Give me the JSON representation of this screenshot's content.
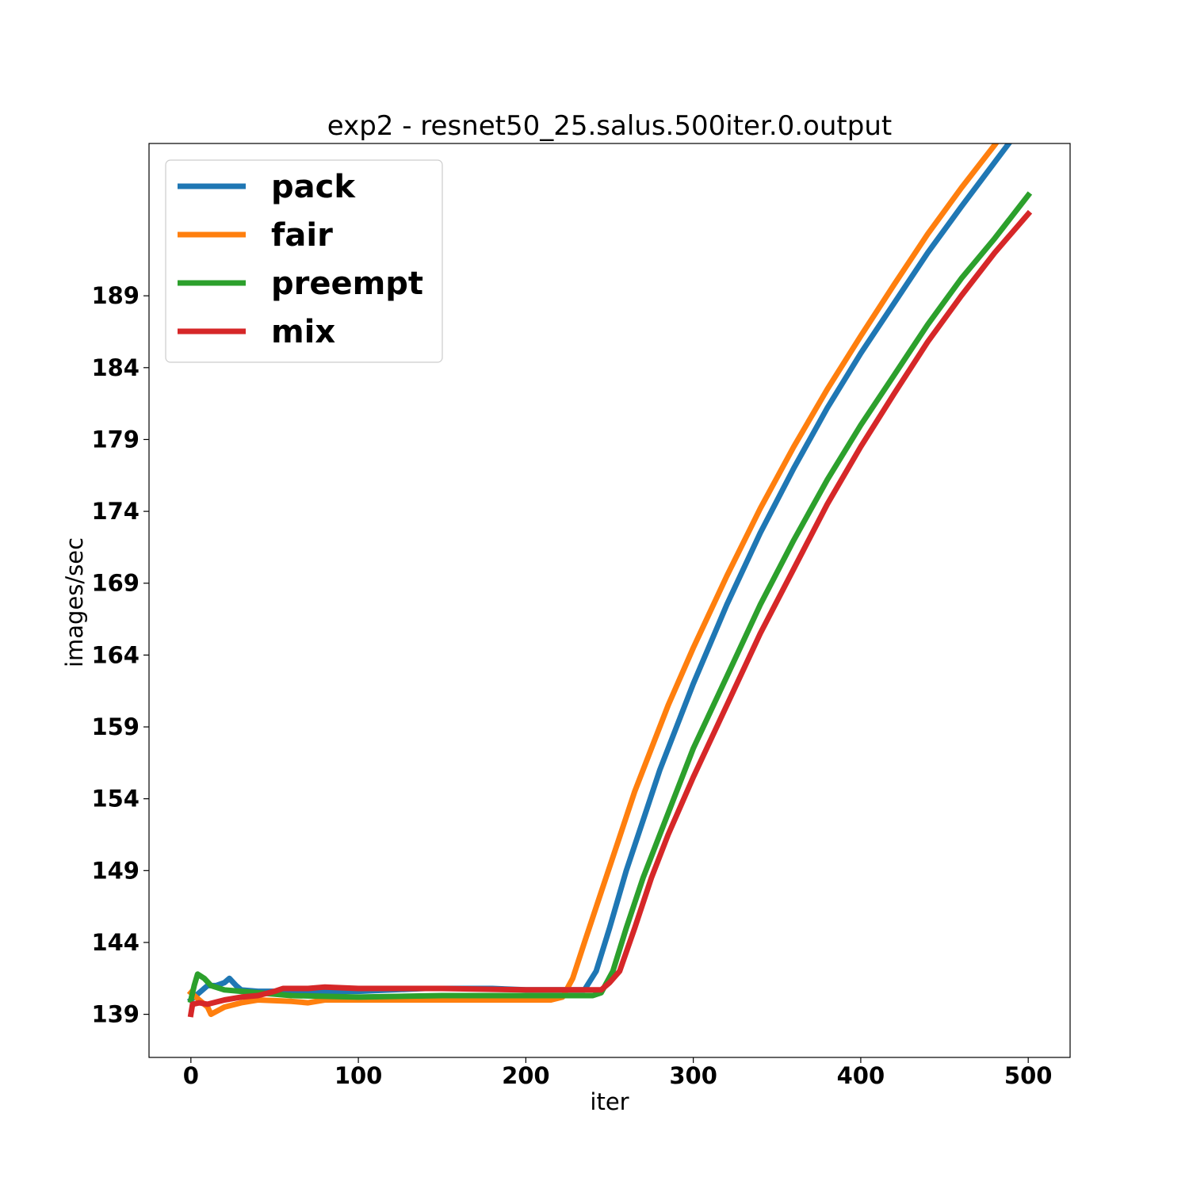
{
  "chart_data": {
    "type": "line",
    "title": "exp2 - resnet50_25.salus.500iter.0.output",
    "xlabel": "iter",
    "ylabel": "images/sec",
    "xlim": [
      -25,
      525
    ],
    "ylim": [
      136,
      199.6
    ],
    "x_ticks": [
      0,
      100,
      200,
      300,
      400,
      500
    ],
    "x_tick_labels": [
      "0",
      "100",
      "200",
      "300",
      "400",
      "500"
    ],
    "y_ticks": [
      139,
      144,
      149,
      154,
      159,
      164,
      169,
      174,
      179,
      184,
      189
    ],
    "y_tick_labels": [
      "139",
      "144",
      "149",
      "154",
      "159",
      "164",
      "169",
      "174",
      "179",
      "184",
      "189"
    ],
    "grid": false,
    "legend_position": "upper-left",
    "series": [
      {
        "name": "pack",
        "color": "#1f77b4",
        "points": [
          [
            0,
            140.0
          ],
          [
            5,
            140.5
          ],
          [
            10,
            141.0
          ],
          [
            15,
            141.0
          ],
          [
            20,
            141.2
          ],
          [
            23,
            141.5
          ],
          [
            27,
            141.0
          ],
          [
            30,
            140.7
          ],
          [
            40,
            140.6
          ],
          [
            60,
            140.6
          ],
          [
            80,
            140.6
          ],
          [
            100,
            140.6
          ],
          [
            120,
            140.7
          ],
          [
            140,
            140.8
          ],
          [
            160,
            140.8
          ],
          [
            180,
            140.8
          ],
          [
            200,
            140.7
          ],
          [
            220,
            140.7
          ],
          [
            235,
            140.7
          ],
          [
            242,
            142.0
          ],
          [
            250,
            145.0
          ],
          [
            260,
            149.0
          ],
          [
            270,
            152.5
          ],
          [
            280,
            156.0
          ],
          [
            290,
            159.0
          ],
          [
            300,
            162.0
          ],
          [
            320,
            167.5
          ],
          [
            340,
            172.5
          ],
          [
            360,
            177.0
          ],
          [
            380,
            181.2
          ],
          [
            400,
            185.0
          ],
          [
            420,
            188.5
          ],
          [
            440,
            192.0
          ],
          [
            460,
            195.2
          ],
          [
            480,
            198.3
          ],
          [
            500,
            201.4
          ]
        ]
      },
      {
        "name": "fair",
        "color": "#ff7f0e",
        "points": [
          [
            0,
            140.5
          ],
          [
            5,
            140.0
          ],
          [
            10,
            139.5
          ],
          [
            12,
            139.0
          ],
          [
            20,
            139.5
          ],
          [
            30,
            139.8
          ],
          [
            40,
            140.0
          ],
          [
            60,
            139.9
          ],
          [
            70,
            139.8
          ],
          [
            80,
            140.0
          ],
          [
            100,
            140.0
          ],
          [
            150,
            140.0
          ],
          [
            200,
            140.0
          ],
          [
            215,
            140.0
          ],
          [
            222,
            140.2
          ],
          [
            228,
            141.5
          ],
          [
            235,
            144.0
          ],
          [
            245,
            147.5
          ],
          [
            255,
            151.0
          ],
          [
            265,
            154.5
          ],
          [
            275,
            157.5
          ],
          [
            285,
            160.5
          ],
          [
            300,
            164.5
          ],
          [
            320,
            169.5
          ],
          [
            340,
            174.2
          ],
          [
            360,
            178.5
          ],
          [
            380,
            182.5
          ],
          [
            400,
            186.2
          ],
          [
            420,
            189.8
          ],
          [
            440,
            193.3
          ],
          [
            460,
            196.5
          ],
          [
            480,
            199.5
          ],
          [
            500,
            202.6
          ]
        ]
      },
      {
        "name": "preempt",
        "color": "#2ca02c",
        "points": [
          [
            0,
            140.0
          ],
          [
            2,
            141.0
          ],
          [
            4,
            141.8
          ],
          [
            8,
            141.5
          ],
          [
            12,
            141.0
          ],
          [
            20,
            140.7
          ],
          [
            30,
            140.6
          ],
          [
            40,
            140.5
          ],
          [
            60,
            140.3
          ],
          [
            100,
            140.2
          ],
          [
            150,
            140.3
          ],
          [
            200,
            140.3
          ],
          [
            240,
            140.3
          ],
          [
            245,
            140.5
          ],
          [
            252,
            142.0
          ],
          [
            260,
            145.0
          ],
          [
            270,
            148.5
          ],
          [
            280,
            151.5
          ],
          [
            290,
            154.5
          ],
          [
            300,
            157.5
          ],
          [
            320,
            162.5
          ],
          [
            340,
            167.5
          ],
          [
            360,
            172.0
          ],
          [
            380,
            176.2
          ],
          [
            400,
            180.0
          ],
          [
            420,
            183.5
          ],
          [
            440,
            187.0
          ],
          [
            460,
            190.2
          ],
          [
            480,
            193.0
          ],
          [
            500,
            196.0
          ]
        ]
      },
      {
        "name": "mix",
        "color": "#d62728",
        "points": [
          [
            0,
            139.0
          ],
          [
            1,
            139.7
          ],
          [
            5,
            139.8
          ],
          [
            10,
            139.7
          ],
          [
            20,
            140.0
          ],
          [
            30,
            140.2
          ],
          [
            40,
            140.3
          ],
          [
            50,
            140.6
          ],
          [
            55,
            140.8
          ],
          [
            70,
            140.8
          ],
          [
            80,
            140.9
          ],
          [
            100,
            140.8
          ],
          [
            150,
            140.8
          ],
          [
            200,
            140.7
          ],
          [
            230,
            140.7
          ],
          [
            245,
            140.7
          ],
          [
            250,
            141.2
          ],
          [
            256,
            142.0
          ],
          [
            265,
            145.0
          ],
          [
            275,
            148.5
          ],
          [
            285,
            151.5
          ],
          [
            300,
            155.5
          ],
          [
            320,
            160.5
          ],
          [
            340,
            165.5
          ],
          [
            360,
            170.0
          ],
          [
            380,
            174.5
          ],
          [
            400,
            178.5
          ],
          [
            420,
            182.2
          ],
          [
            440,
            185.8
          ],
          [
            460,
            189.0
          ],
          [
            480,
            192.0
          ],
          [
            500,
            194.7
          ]
        ]
      }
    ]
  }
}
